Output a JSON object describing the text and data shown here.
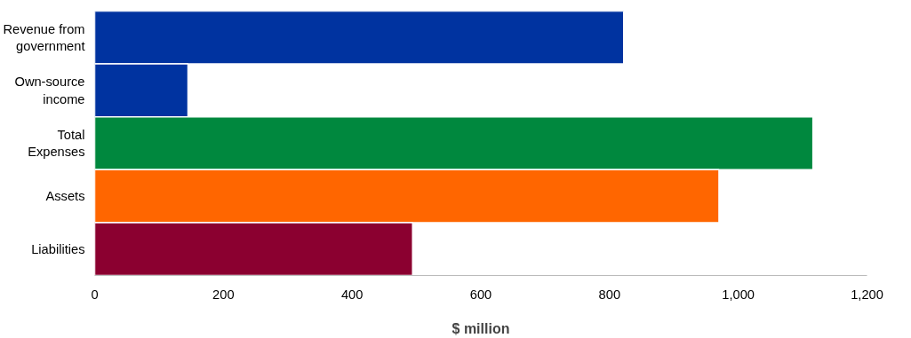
{
  "chart_data": {
    "type": "bar",
    "orientation": "horizontal",
    "xlabel": "$ million",
    "categories": [
      "Revenue from government",
      "Own-source income",
      "Total Expenses",
      "Assets",
      "Liabilities"
    ],
    "values": [
      822,
      145,
      1116,
      970,
      494
    ],
    "colors": [
      "#0033a0",
      "#0033a0",
      "#00883e",
      "#ff6600",
      "#8b0030"
    ],
    "xlim": [
      0,
      1200
    ],
    "xticks": [
      0,
      200,
      400,
      600,
      800,
      {
        "value": 1000,
        "label": "1,000"
      },
      {
        "value": 1200,
        "label": "1,200"
      }
    ],
    "grid": false
  }
}
